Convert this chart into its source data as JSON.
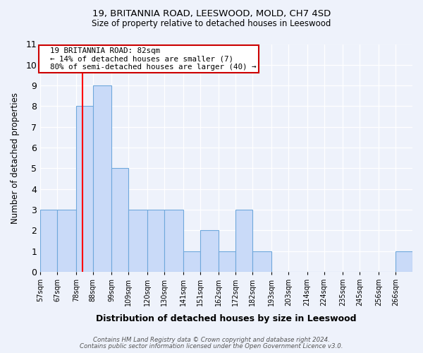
{
  "title1": "19, BRITANNIA ROAD, LEESWOOD, MOLD, CH7 4SD",
  "title2": "Size of property relative to detached houses in Leeswood",
  "xlabel": "Distribution of detached houses by size in Leeswood",
  "ylabel": "Number of detached properties",
  "bin_labels": [
    "57sqm",
    "67sqm",
    "78sqm",
    "88sqm",
    "99sqm",
    "109sqm",
    "120sqm",
    "130sqm",
    "141sqm",
    "151sqm",
    "162sqm",
    "172sqm",
    "182sqm",
    "193sqm",
    "203sqm",
    "214sqm",
    "224sqm",
    "235sqm",
    "245sqm",
    "256sqm",
    "266sqm"
  ],
  "bin_edges": [
    57,
    67,
    78,
    88,
    99,
    109,
    120,
    130,
    141,
    151,
    162,
    172,
    182,
    193,
    203,
    214,
    224,
    235,
    245,
    256,
    266
  ],
  "bar_heights": [
    3,
    3,
    8,
    9,
    5,
    3,
    3,
    3,
    1,
    2,
    1,
    3,
    1,
    0,
    0,
    0,
    0,
    0,
    0,
    0,
    1
  ],
  "bar_color": "#c9daf8",
  "bar_edge_color": "#6fa8dc",
  "red_line_x": 82,
  "annotation_title": "19 BRITANNIA ROAD: 82sqm",
  "annotation_line1": "← 14% of detached houses are smaller (7)",
  "annotation_line2": "80% of semi-detached houses are larger (40) →",
  "annotation_box_color": "#ffffff",
  "annotation_box_edge": "#cc0000",
  "footnote1": "Contains HM Land Registry data © Crown copyright and database right 2024.",
  "footnote2": "Contains public sector information licensed under the Open Government Licence v3.0.",
  "ylim": [
    0,
    11
  ],
  "background_color": "#eef2fb"
}
